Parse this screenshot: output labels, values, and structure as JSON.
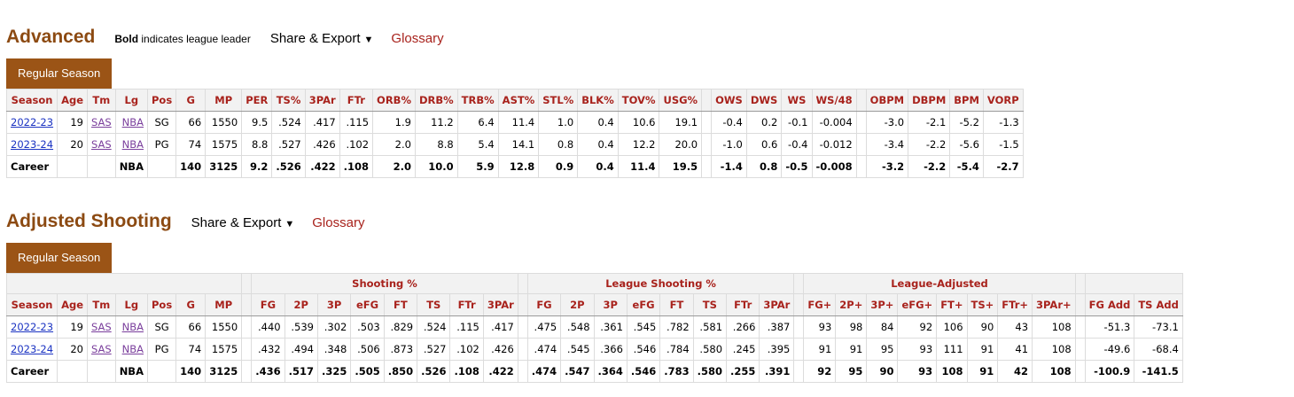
{
  "advanced": {
    "title": "Advanced",
    "note_bold": "Bold",
    "note_rest": "indicates league leader",
    "share_export": "Share & Export",
    "glossary": "Glossary",
    "tab": "Regular Season",
    "columns": [
      "Season",
      "Age",
      "Tm",
      "Lg",
      "Pos",
      "G",
      "MP",
      "PER",
      "TS%",
      "3PAr",
      "FTr",
      "ORB%",
      "DRB%",
      "TRB%",
      "AST%",
      "STL%",
      "BLK%",
      "TOV%",
      "USG%",
      "OWS",
      "DWS",
      "WS",
      "WS/48",
      "OBPM",
      "DBPM",
      "BPM",
      "VORP"
    ],
    "rows": [
      [
        "2022-23",
        "19",
        "SAS",
        "NBA",
        "SG",
        "66",
        "1550",
        "9.5",
        ".524",
        ".417",
        ".115",
        "1.9",
        "11.2",
        "6.4",
        "11.4",
        "1.0",
        "0.4",
        "10.6",
        "19.1",
        "-0.4",
        "0.2",
        "-0.1",
        "-0.004",
        "-3.0",
        "-2.1",
        "-5.2",
        "-1.3"
      ],
      [
        "2023-24",
        "20",
        "SAS",
        "NBA",
        "PG",
        "74",
        "1575",
        "8.8",
        ".527",
        ".426",
        ".102",
        "2.0",
        "8.8",
        "5.4",
        "14.1",
        "0.8",
        "0.4",
        "12.2",
        "20.0",
        "-1.0",
        "0.6",
        "-0.4",
        "-0.012",
        "-3.4",
        "-2.2",
        "-5.6",
        "-1.5"
      ]
    ],
    "career": [
      "Career",
      "",
      "",
      "NBA",
      "",
      "140",
      "3125",
      "9.2",
      ".526",
      ".422",
      ".108",
      "2.0",
      "10.0",
      "5.9",
      "12.8",
      "0.9",
      "0.4",
      "11.4",
      "19.5",
      "-1.4",
      "0.8",
      "-0.5",
      "-0.008",
      "-3.2",
      "-2.2",
      "-5.4",
      "-2.7"
    ]
  },
  "adjusted": {
    "title": "Adjusted Shooting",
    "share_export": "Share & Export",
    "glossary": "Glossary",
    "tab": "Regular Season",
    "groups": [
      "Shooting %",
      "League Shooting %",
      "League-Adjusted"
    ],
    "columns": [
      "Season",
      "Age",
      "Tm",
      "Lg",
      "Pos",
      "G",
      "MP",
      "FG",
      "2P",
      "3P",
      "eFG",
      "FT",
      "TS",
      "FTr",
      "3PAr",
      "FG",
      "2P",
      "3P",
      "eFG",
      "FT",
      "TS",
      "FTr",
      "3PAr",
      "FG+",
      "2P+",
      "3P+",
      "eFG+",
      "FT+",
      "TS+",
      "FTr+",
      "3PAr+",
      "FG Add",
      "TS Add"
    ],
    "rows": [
      [
        "2022-23",
        "19",
        "SAS",
        "NBA",
        "SG",
        "66",
        "1550",
        ".440",
        ".539",
        ".302",
        ".503",
        ".829",
        ".524",
        ".115",
        ".417",
        ".475",
        ".548",
        ".361",
        ".545",
        ".782",
        ".581",
        ".266",
        ".387",
        "93",
        "98",
        "84",
        "92",
        "106",
        "90",
        "43",
        "108",
        "-51.3",
        "-73.1"
      ],
      [
        "2023-24",
        "20",
        "SAS",
        "NBA",
        "PG",
        "74",
        "1575",
        ".432",
        ".494",
        ".348",
        ".506",
        ".873",
        ".527",
        ".102",
        ".426",
        ".474",
        ".545",
        ".366",
        ".546",
        ".784",
        ".580",
        ".245",
        ".395",
        "91",
        "91",
        "95",
        "93",
        "111",
        "91",
        "41",
        "108",
        "-49.6",
        "-68.4"
      ]
    ],
    "career": [
      "Career",
      "",
      "",
      "NBA",
      "",
      "140",
      "3125",
      ".436",
      ".517",
      ".325",
      ".505",
      ".850",
      ".526",
      ".108",
      ".422",
      ".474",
      ".547",
      ".364",
      ".546",
      ".783",
      ".580",
      ".255",
      ".391",
      "92",
      "95",
      "90",
      "93",
      "108",
      "91",
      "42",
      "108",
      "-100.9",
      "-141.5"
    ]
  }
}
